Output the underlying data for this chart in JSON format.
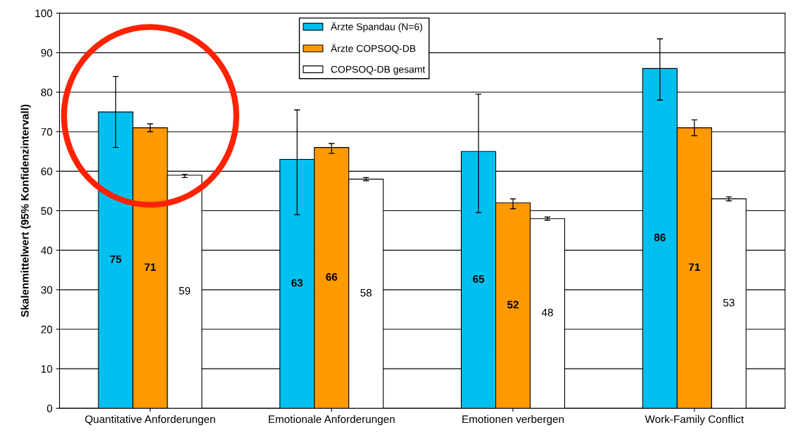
{
  "chart_data": {
    "type": "bar",
    "categories": [
      "Quantitative Anforderungen",
      "Emotionale Anforderungen",
      "Emotionen verbergen",
      "Work-Family Conflict"
    ],
    "ylabel": "Skalenmittelwert (95% Konfidenzintervall)",
    "series": [
      {
        "name": "Ärzte Spandau (N=6)",
        "color": "#00c0f0",
        "values": [
          75,
          63,
          65,
          86
        ],
        "errors": [
          [
            66,
            84
          ],
          [
            49,
            75.5
          ],
          [
            49.5,
            79.5
          ],
          [
            78,
            93.5
          ]
        ]
      },
      {
        "name": "Ärzte COPSOQ-DB",
        "color": "#ff9900",
        "values": [
          71,
          66,
          52,
          71
        ],
        "errors": [
          [
            70,
            72
          ],
          [
            64.5,
            67
          ],
          [
            50.5,
            53
          ],
          [
            69,
            73
          ]
        ]
      },
      {
        "name": "COPSOQ-DB gesamt",
        "color": "#ffffff",
        "values": [
          59,
          58,
          48,
          53
        ],
        "errors": [
          [
            58.4,
            59.2
          ],
          [
            57.6,
            58.4
          ],
          [
            47.6,
            48.4
          ],
          [
            52.5,
            53.5
          ]
        ]
      }
    ],
    "ylim": [
      0,
      100
    ],
    "yticks": [
      0,
      10,
      20,
      30,
      40,
      50,
      60,
      70,
      80,
      90,
      100
    ],
    "grid": "y",
    "legend": "top",
    "data_labels": true
  }
}
